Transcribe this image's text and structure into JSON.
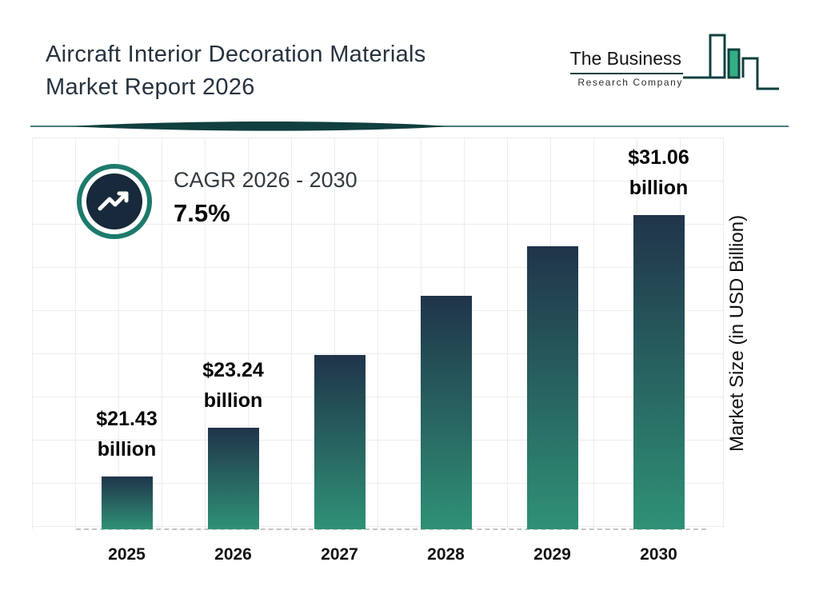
{
  "header": {
    "title_line1": "Aircraft Interior Decoration Materials",
    "title_line2": "Market Report 2026",
    "logo": {
      "name_line1": "The Business",
      "name_line2": "Research Company"
    }
  },
  "cagr": {
    "label": "CAGR 2026 - 2030",
    "value": "7.5%"
  },
  "chart_data": {
    "type": "bar",
    "title": "Aircraft Interior Decoration Materials Market Report 2026",
    "categories": [
      "2025",
      "2026",
      "2027",
      "2028",
      "2029",
      "2030"
    ],
    "values": [
      21.43,
      23.24,
      25.9,
      28.1,
      29.9,
      31.06
    ],
    "value_labels": [
      "$21.43 billion",
      "$23.24 billion",
      "",
      "",
      "",
      "$31.06 billion"
    ],
    "xlabel": "",
    "ylabel": "Market Size (in USD Billion)",
    "ylim": [
      19.5,
      33.5
    ],
    "grid": true,
    "legend": "none",
    "baseline_style": "dashed",
    "bar_gradient_top": "#20344a",
    "bar_gradient_bottom": "#2f9176",
    "annotations": [
      "CAGR 2026 - 2030: 7.5%"
    ]
  },
  "colors": {
    "accent_teal": "#1d7a6b",
    "navy": "#17293a",
    "divider_teal": "#113f3f",
    "logo_green": "#34ae85",
    "grid_line": "#ededed",
    "baseline_gray": "#c3c3c3"
  }
}
